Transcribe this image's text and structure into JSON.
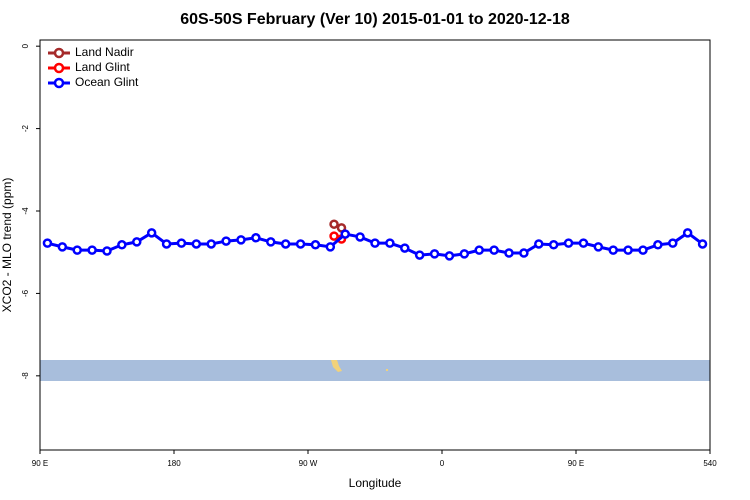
{
  "chart_data": {
    "type": "line",
    "title": "60S-50S February (Ver 10)   2015-01-01 to 2020-12-18",
    "xlabel": "Longitude",
    "ylabel": "XCO2 - MLO trend (ppm)",
    "xlim": [
      90,
      540
    ],
    "ylim": [
      -9.8,
      0.15
    ],
    "xticks": [
      {
        "value": 90,
        "label": "90 E"
      },
      180,
      {
        "value": 270,
        "label": "90 W"
      },
      {
        "value": 360,
        "label": "0"
      },
      {
        "value": 450,
        "label": "90 E"
      },
      540
    ],
    "yticks": [
      0,
      -2,
      -4,
      -6,
      -8
    ],
    "legend": "top-left",
    "series": [
      {
        "name": "Land Nadir",
        "color": "#a52a2a",
        "x": [
          287.5,
          292.5
        ],
        "values": [
          -4.32,
          -4.41
        ]
      },
      {
        "name": "Land Glint",
        "color": "#ff0000",
        "x": [
          287.5,
          292.5
        ],
        "values": [
          -4.61,
          -4.68
        ]
      },
      {
        "name": "Ocean Glint",
        "color": "#0000ff",
        "x": [
          95,
          105,
          115,
          125,
          135,
          145,
          155,
          165,
          175,
          185,
          195,
          205,
          215,
          225,
          235,
          245,
          255,
          265,
          275,
          285,
          295,
          305,
          315,
          325,
          335,
          345,
          355,
          365,
          375,
          385,
          395,
          405,
          415,
          425,
          435,
          445,
          455,
          465,
          475,
          485,
          495,
          505,
          515,
          525,
          535
        ],
        "values": [
          -4.78,
          -4.87,
          -4.95,
          -4.95,
          -4.97,
          -4.82,
          -4.75,
          -4.53,
          -4.8,
          -4.78,
          -4.8,
          -4.8,
          -4.73,
          -4.7,
          -4.65,
          -4.75,
          -4.8,
          -4.8,
          -4.82,
          -4.87,
          -4.56,
          -4.63,
          -4.78,
          -4.78,
          -4.9,
          -5.07,
          -5.04,
          -5.09,
          -5.04,
          -4.95,
          -4.95,
          -5.02,
          -5.02,
          -4.8,
          -4.82,
          -4.78,
          -4.78,
          -4.87,
          -4.95,
          -4.95,
          -4.95,
          -4.82,
          -4.78,
          -4.53,
          -4.8
        ]
      }
    ]
  }
}
